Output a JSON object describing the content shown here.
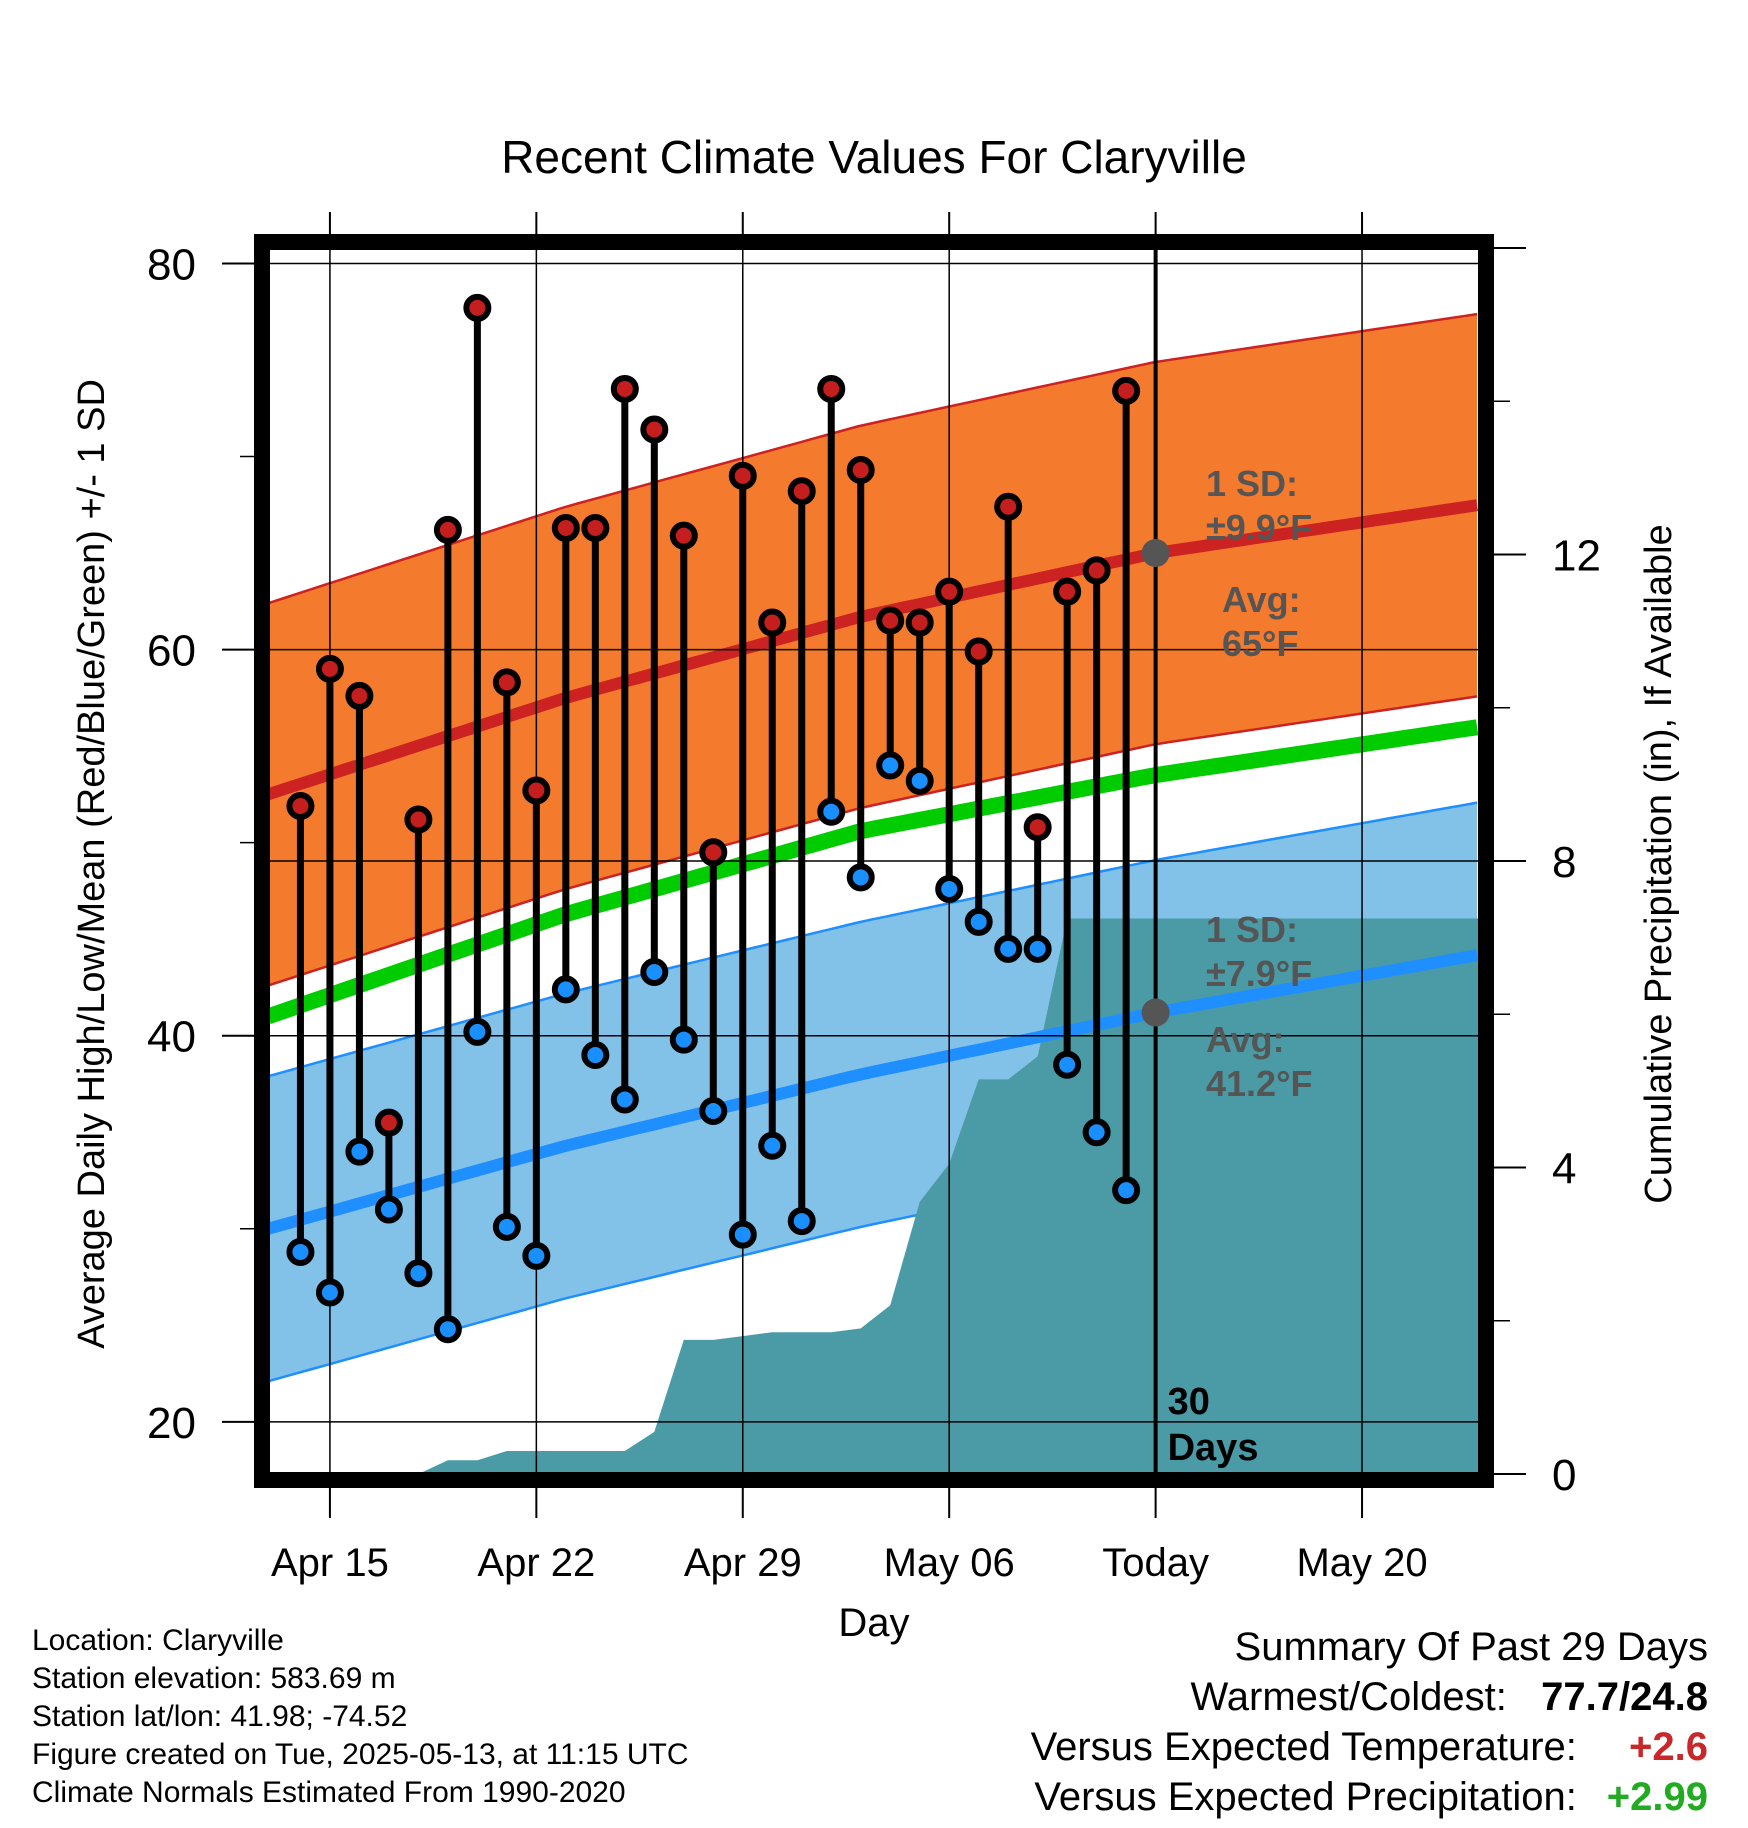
{
  "chart_data": {
    "type": "line",
    "title": "Recent Climate Values For Claryville",
    "xlabel": "Day",
    "ylabel": "Average Daily High/Low/Mean (Red/Blue/Green) +/- 1 SD",
    "y2label": "Cumulative Precipitation (in), If Available",
    "ylim": [
      17.3,
      80.8
    ],
    "y2lim": [
      0,
      16
    ],
    "xlim": [
      -30.1,
      11.0
    ],
    "y_ticks": [
      20,
      40,
      60,
      80
    ],
    "y2_ticks": [
      0,
      4,
      8,
      12
    ],
    "x_ticks": [
      {
        "day": -28,
        "label": "Apr 15"
      },
      {
        "day": -21,
        "label": "Apr 22"
      },
      {
        "day": -14,
        "label": "Apr 29"
      },
      {
        "day": -7,
        "label": "May 06"
      },
      {
        "day": 0,
        "label": "Today"
      },
      {
        "day": 7,
        "label": "May 20"
      }
    ],
    "today_marker_label": "30\nDays",
    "colors": {
      "high_band": "#f47a2e",
      "high_line": "#cc2222",
      "low_band": "#82c1e8",
      "low_line": "#1f8fff",
      "mean_line": "#00cc00",
      "precip": "#4a9ba5",
      "high_dot": "#c41e1e",
      "low_dot": "#1a8fff",
      "annot": "#555555",
      "pos_temp": "#c8282a",
      "pos_precip": "#22aa22"
    },
    "normals": {
      "days": [
        -30.1,
        -20,
        -10,
        0,
        11
      ],
      "high_mean": [
        52.5,
        57.5,
        61.7,
        65.0,
        67.5
      ],
      "high_sd": 9.9,
      "low_mean": [
        30.0,
        34.3,
        38.0,
        41.2,
        44.2
      ],
      "low_sd": 7.9,
      "mean": [
        41.0,
        46.3,
        50.6,
        53.5,
        56.0
      ]
    },
    "series": [
      {
        "name": "High",
        "days": [
          -29,
          -28,
          -27,
          -26,
          -25,
          -24,
          -23,
          -22,
          -21,
          -20,
          -19,
          -18,
          -17,
          -16,
          -15,
          -14,
          -13,
          -12,
          -11,
          -10,
          -9,
          -8,
          -7,
          -6,
          -5,
          -4,
          -3,
          -2,
          -1
        ],
        "values": [
          51.9,
          59.0,
          57.6,
          35.5,
          51.2,
          66.2,
          77.7,
          58.3,
          52.7,
          66.3,
          66.3,
          73.5,
          71.4,
          65.9,
          49.5,
          69.0,
          61.4,
          68.2,
          73.5,
          69.3,
          61.5,
          61.4,
          63.0,
          59.9,
          67.4,
          50.8,
          63.0,
          64.1,
          73.4
        ]
      },
      {
        "name": "Low",
        "days": [
          -29,
          -28,
          -27,
          -26,
          -25,
          -24,
          -23,
          -22,
          -21,
          -20,
          -19,
          -18,
          -17,
          -16,
          -15,
          -14,
          -13,
          -12,
          -11,
          -10,
          -9,
          -8,
          -7,
          -6,
          -5,
          -4,
          -3,
          -2,
          -1
        ],
        "values": [
          28.8,
          26.7,
          34.0,
          31.0,
          27.7,
          24.8,
          40.2,
          30.1,
          28.6,
          42.4,
          39.0,
          36.7,
          43.3,
          39.8,
          36.1,
          29.7,
          34.3,
          30.4,
          51.6,
          48.2,
          54.0,
          53.2,
          47.6,
          45.9,
          44.5,
          44.5,
          38.5,
          35.0,
          32.0
        ]
      },
      {
        "name": "Cumulative Precipitation",
        "axis": "y2",
        "days": [
          -30.1,
          -25,
          -24,
          -23,
          -22,
          -21,
          -20,
          -19,
          -18,
          -17,
          -16,
          -15,
          -14,
          -13,
          -12,
          -11,
          -10,
          -9,
          -8,
          -7,
          -6,
          -5,
          -4,
          -3,
          -2,
          -1,
          0,
          11
        ],
        "values": [
          0,
          0,
          0.18,
          0.18,
          0.3,
          0.3,
          0.3,
          0.3,
          0.3,
          0.55,
          1.75,
          1.75,
          1.8,
          1.85,
          1.85,
          1.85,
          1.9,
          2.2,
          3.55,
          4.05,
          5.15,
          5.15,
          5.45,
          7.25,
          7.25,
          7.25,
          7.25,
          7.25
        ]
      }
    ],
    "annotations": {
      "high_sd": "1 SD:\n±9.9°F",
      "high_avg": "Avg:\n65°F",
      "low_sd": "1 SD:\n±7.9°F",
      "low_avg": "Avg:\n41.2°F"
    },
    "grid": true,
    "legend": "none"
  },
  "footer": {
    "location": "Location: Claryville",
    "elevation": "Station elevation: 583.69 m",
    "latlon": "Station lat/lon: 41.98; -74.52",
    "created": "Figure created on Tue, 2025-05-13, at 11:15 UTC",
    "normals": "Climate Normals Estimated From 1990-2020"
  },
  "summary": {
    "title": "Summary Of Past 29 Days",
    "warm_cold_label": "Warmest/Coldest:",
    "warm_cold_value": "77.7/24.8",
    "temp_label": "Versus Expected Temperature:",
    "temp_value": "+2.6",
    "precip_label": "Versus Expected Precipitation:",
    "precip_value": "+2.99"
  }
}
